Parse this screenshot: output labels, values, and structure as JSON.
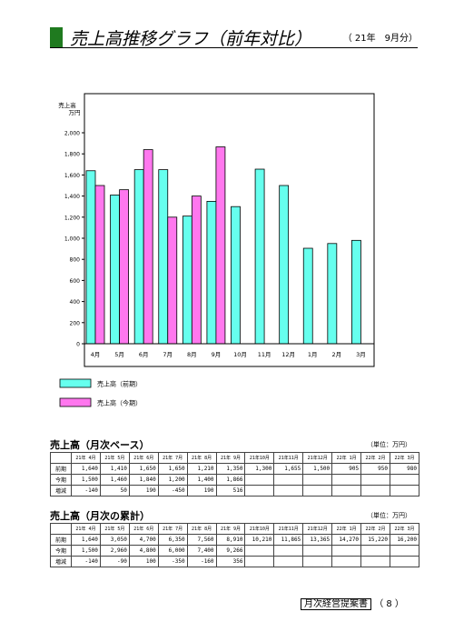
{
  "header": {
    "title": "売上高推移グラフ（前年対比）",
    "period": "（ 21年　9月分）"
  },
  "chart_data": {
    "type": "bar",
    "ylabel": "売上高\n万円",
    "ylim": [
      0,
      2000
    ],
    "yticks": [
      "0",
      "200",
      "400",
      "600",
      "800",
      "1,000",
      "1,200",
      "1,400",
      "1,600",
      "1,800",
      "2,000"
    ],
    "categories": [
      "4月",
      "5月",
      "6月",
      "7月",
      "8月",
      "9月",
      "10月",
      "11月",
      "12月",
      "1月",
      "2月",
      "3月"
    ],
    "series": [
      {
        "name": "売上高（前期）",
        "color": "#66ffee",
        "values": [
          1640,
          1410,
          1650,
          1650,
          1210,
          1350,
          1300,
          1655,
          1500,
          905,
          950,
          980
        ]
      },
      {
        "name": "売上高（今期）",
        "color": "#ff77ee",
        "values": [
          1500,
          1460,
          1840,
          1200,
          1400,
          1866,
          null,
          null,
          null,
          null,
          null,
          null
        ]
      }
    ]
  },
  "monthly": {
    "title": "売上高（月次ベース）",
    "unit": "（単位：万円）",
    "headers": [
      "21年 4月",
      "21年 5月",
      "21年 6月",
      "21年 7月",
      "21年 8月",
      "21年 9月",
      "21年10月",
      "21年11月",
      "21年12月",
      "22年 1月",
      "22年 2月",
      "22年 3月"
    ],
    "rows": [
      {
        "label": "前期",
        "values": [
          "1,640",
          "1,410",
          "1,650",
          "1,650",
          "1,210",
          "1,350",
          "1,300",
          "1,655",
          "1,500",
          "905",
          "950",
          "980"
        ]
      },
      {
        "label": "今期",
        "values": [
          "1,500",
          "1,460",
          "1,840",
          "1,200",
          "1,400",
          "1,866",
          "",
          "",
          "",
          "",
          "",
          ""
        ]
      },
      {
        "label": "増減",
        "values": [
          "-140",
          "50",
          "190",
          "-450",
          "190",
          "516",
          "",
          "",
          "",
          "",
          "",
          ""
        ]
      }
    ]
  },
  "cumulative": {
    "title": "売上高（月次の累計）",
    "unit": "（単位：万円）",
    "headers": [
      "21年 4月",
      "21年 5月",
      "21年 6月",
      "21年 7月",
      "21年 8月",
      "21年 9月",
      "21年10月",
      "21年11月",
      "21年12月",
      "22年 1月",
      "22年 2月",
      "22年 3月"
    ],
    "rows": [
      {
        "label": "前期",
        "values": [
          "1,640",
          "3,050",
          "4,700",
          "6,350",
          "7,560",
          "8,910",
          "10,210",
          "11,865",
          "13,365",
          "14,270",
          "15,220",
          "16,200"
        ]
      },
      {
        "label": "今期",
        "values": [
          "1,500",
          "2,960",
          "4,800",
          "6,000",
          "7,400",
          "9,266",
          "",
          "",
          "",
          "",
          "",
          ""
        ]
      },
      {
        "label": "増減",
        "values": [
          "-140",
          "-90",
          "100",
          "-350",
          "-160",
          "356",
          "",
          "",
          "",
          "",
          "",
          ""
        ]
      }
    ]
  },
  "footer": {
    "doc_label": "月次経営提案書",
    "page": "（ 8 ）"
  }
}
